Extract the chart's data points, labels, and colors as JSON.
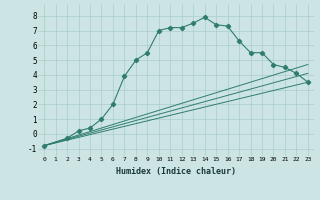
{
  "xlabel": "Humidex (Indice chaleur)",
  "bg_color": "#cde4e4",
  "grid_color": "#aacece",
  "line_color": "#2e7d6e",
  "xlim": [
    -0.5,
    23.5
  ],
  "ylim": [
    -1.5,
    8.8
  ],
  "yticks": [
    -1,
    0,
    1,
    2,
    3,
    4,
    5,
    6,
    7,
    8
  ],
  "xticks": [
    0,
    1,
    2,
    3,
    4,
    5,
    6,
    7,
    8,
    9,
    10,
    11,
    12,
    13,
    14,
    15,
    16,
    17,
    18,
    19,
    20,
    21,
    22,
    23
  ],
  "main_series_x": [
    0,
    2,
    3,
    4,
    5,
    6,
    7,
    8,
    9,
    10,
    11,
    12,
    13,
    14,
    15,
    16,
    17,
    18,
    19,
    20,
    21,
    22,
    23
  ],
  "main_series_y": [
    -0.8,
    -0.3,
    0.2,
    0.4,
    1.0,
    2.0,
    3.9,
    5.0,
    5.5,
    7.0,
    7.2,
    7.2,
    7.5,
    7.9,
    7.4,
    7.3,
    6.3,
    5.5,
    5.5,
    4.7,
    4.5,
    4.1,
    3.5
  ],
  "straight_lines": [
    {
      "x": [
        0,
        23
      ],
      "y": [
        -0.8,
        3.5
      ]
    },
    {
      "x": [
        0,
        23
      ],
      "y": [
        -0.8,
        4.1
      ]
    },
    {
      "x": [
        0,
        23
      ],
      "y": [
        -0.8,
        4.7
      ]
    }
  ]
}
